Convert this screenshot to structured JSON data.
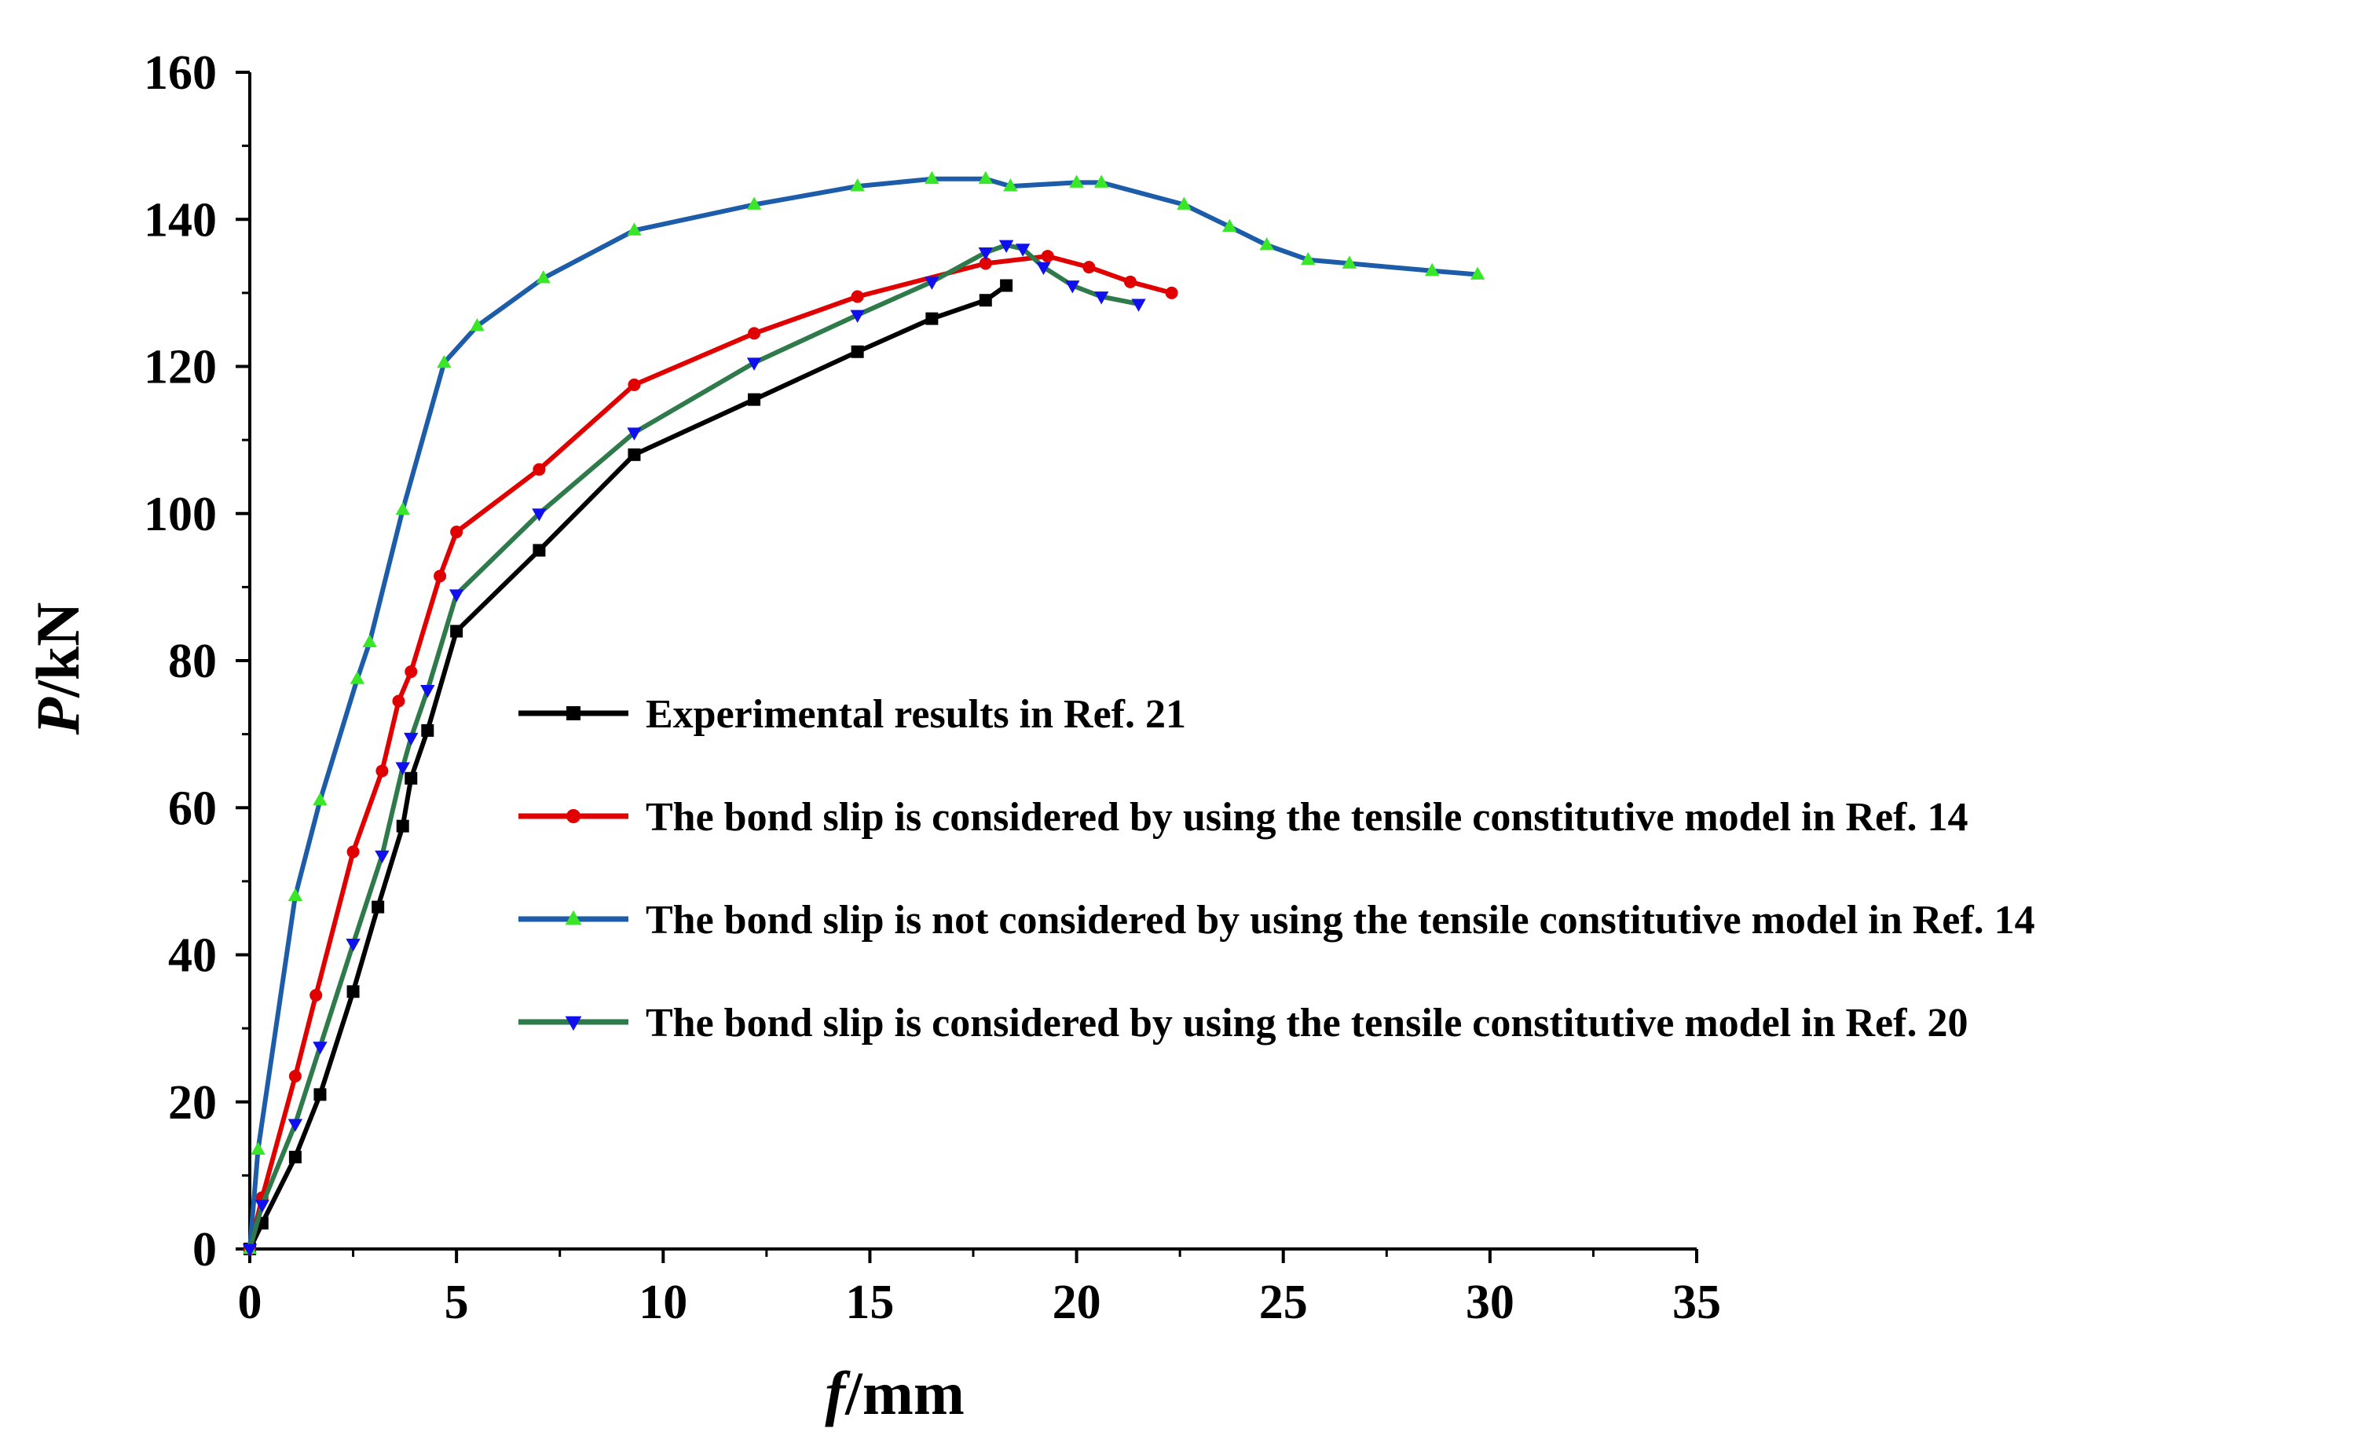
{
  "chart_data": {
    "type": "line",
    "title": "",
    "xlabel": {
      "italic": "f",
      "rest": "/mm"
    },
    "ylabel": {
      "italic": "P",
      "rest": "/kN"
    },
    "xlim": [
      0,
      35
    ],
    "ylim": [
      0,
      160
    ],
    "xticks": [
      0,
      5,
      10,
      15,
      20,
      25,
      30,
      35
    ],
    "yticks": [
      0,
      20,
      40,
      60,
      80,
      100,
      120,
      140,
      160
    ],
    "xtick_labels": [
      "0",
      "5",
      "10",
      "15",
      "20",
      "25",
      "30",
      "35"
    ],
    "ytick_labels": [
      "0",
      "20",
      "40",
      "60",
      "80",
      "100",
      "120",
      "140",
      "160"
    ],
    "grid": false,
    "legend_position": "center",
    "series": [
      {
        "name": "Experimental results in Ref. 21",
        "color": "#000000",
        "marker": "square",
        "x": [
          0,
          0.3,
          1.1,
          1.7,
          2.5,
          3.1,
          3.7,
          3.9,
          4.3,
          5.0,
          7.0,
          9.3,
          12.2,
          14.7,
          16.5,
          17.8,
          18.3
        ],
        "y": [
          0,
          3.5,
          12.5,
          21,
          35,
          46.5,
          57.5,
          64,
          70.5,
          84,
          95,
          108,
          115.5,
          122,
          126.5,
          129,
          131
        ]
      },
      {
        "name": "The bond slip is considered by using the tensile constitutive model in Ref. 14",
        "color": "#e00000",
        "marker": "circle",
        "x": [
          0,
          0.3,
          1.1,
          1.6,
          2.5,
          3.2,
          3.6,
          3.9,
          4.6,
          5.0,
          7.0,
          9.3,
          12.2,
          14.7,
          17.8,
          19.3,
          20.3,
          21.3,
          22.3
        ],
        "y": [
          0,
          7,
          23.5,
          34.5,
          54,
          65,
          74.5,
          78.5,
          91.5,
          97.5,
          106,
          117.5,
          124.5,
          129.5,
          134,
          135,
          133.5,
          131.5,
          130
        ]
      },
      {
        "name": "The bond slip is not considered by using the tensile constitutive model in Ref. 14",
        "color": "#1c5ca8",
        "marker": "triangle-up",
        "markerColor": "#39e628",
        "x": [
          0,
          0.2,
          1.1,
          1.7,
          2.6,
          2.9,
          3.7,
          4.7,
          5.5,
          7.1,
          9.3,
          12.2,
          14.7,
          16.5,
          17.8,
          18.4,
          20.0,
          20.6,
          22.6,
          23.7,
          24.6,
          25.6,
          26.6,
          28.6,
          29.7
        ],
        "y": [
          0,
          13.5,
          48,
          61,
          77.5,
          82.5,
          100.5,
          120.5,
          125.5,
          132,
          138.5,
          142,
          144.5,
          145.5,
          145.5,
          144.5,
          145,
          145,
          142,
          139,
          136.5,
          134.5,
          134,
          133,
          132.5
        ]
      },
      {
        "name": "The bond slip is considered by using the tensile constitutive model in Ref. 20",
        "color": "#2e7a4a",
        "marker": "triangle-down",
        "markerColor": "#1010ee",
        "x": [
          0,
          0.3,
          1.1,
          1.7,
          2.5,
          3.2,
          3.7,
          3.9,
          4.3,
          5.0,
          7.0,
          9.3,
          12.2,
          14.7,
          16.5,
          17.8,
          18.3,
          18.7,
          19.2,
          19.9,
          20.6,
          21.5
        ],
        "y": [
          0,
          6,
          17,
          27.5,
          41.5,
          53.5,
          65.5,
          69.5,
          76,
          89,
          100,
          111,
          120.5,
          127,
          131.5,
          135.5,
          136.5,
          136,
          133.5,
          131,
          129.5,
          128.5
        ]
      }
    ]
  }
}
